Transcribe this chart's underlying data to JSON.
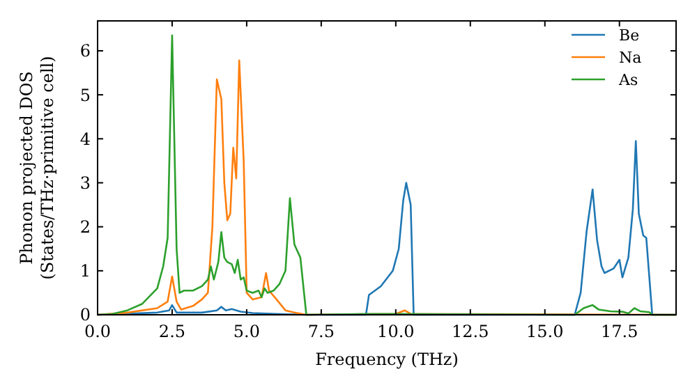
{
  "chart_data": {
    "type": "line",
    "xlabel": "Frequency (THz)",
    "ylabel": "Phonon projected DOS\n(States/THz·primitive cell)",
    "xlim": [
      0,
      19.4
    ],
    "ylim": [
      0,
      6.68
    ],
    "xticks": [
      {
        "value": 0,
        "label": "0.0"
      },
      {
        "value": 2.5,
        "label": "2.5"
      },
      {
        "value": 5,
        "label": "5.0"
      },
      {
        "value": 7.5,
        "label": "7.5"
      },
      {
        "value": 10,
        "label": "10.0"
      },
      {
        "value": 12.5,
        "label": "12.5"
      },
      {
        "value": 15,
        "label": "15.0"
      },
      {
        "value": 17.5,
        "label": "17.5"
      }
    ],
    "yticks": [
      0,
      1,
      2,
      3,
      4,
      5,
      6
    ],
    "legend": "top right",
    "grid": false,
    "marker": "none",
    "line_style": "solid",
    "series": [
      {
        "name": "Be",
        "color": "#1f77b4",
        "x": [
          0,
          2.0,
          2.4,
          2.5,
          2.65,
          3.5,
          4.0,
          4.15,
          4.3,
          4.5,
          4.8,
          5.2,
          6.0,
          7.0,
          9.0,
          9.1,
          9.5,
          9.9,
          10.1,
          10.25,
          10.35,
          10.5,
          10.6,
          16.0,
          16.2,
          16.4,
          16.6,
          16.75,
          16.9,
          17.0,
          17.3,
          17.5,
          17.6,
          17.8,
          17.95,
          18.05,
          18.15,
          18.3,
          18.4,
          18.6,
          19.4
        ],
        "values": [
          0,
          0.05,
          0.1,
          0.22,
          0.05,
          0.05,
          0.1,
          0.18,
          0.1,
          0.13,
          0.07,
          0.04,
          0.02,
          0,
          0,
          0.45,
          0.65,
          1.0,
          1.5,
          2.6,
          3.0,
          2.5,
          0,
          0,
          0.5,
          1.9,
          2.85,
          1.7,
          1.1,
          0.95,
          1.05,
          1.25,
          0.85,
          1.3,
          2.4,
          3.95,
          2.3,
          1.8,
          1.75,
          0,
          0
        ]
      },
      {
        "name": "Na",
        "color": "#ff7f0e",
        "x": [
          0,
          1.0,
          2.0,
          2.35,
          2.5,
          2.65,
          2.8,
          3.2,
          3.5,
          3.7,
          3.85,
          4.0,
          4.15,
          4.25,
          4.35,
          4.45,
          4.55,
          4.65,
          4.75,
          4.9,
          5.0,
          5.2,
          5.5,
          5.65,
          5.75,
          6.0,
          6.3,
          6.6,
          7.0,
          10.0,
          10.3,
          10.5,
          19.4
        ],
        "values": [
          0,
          0.05,
          0.15,
          0.3,
          0.87,
          0.3,
          0.12,
          0.2,
          0.35,
          0.5,
          2.0,
          5.35,
          4.9,
          3.0,
          2.15,
          2.3,
          3.8,
          3.1,
          5.78,
          3.5,
          0.5,
          0.35,
          0.4,
          0.95,
          0.55,
          0.35,
          0.1,
          0.05,
          0,
          0.02,
          0.1,
          0.02,
          0
        ]
      },
      {
        "name": "As",
        "color": "#2ca02c",
        "x": [
          0,
          0.5,
          1.0,
          1.5,
          2.0,
          2.2,
          2.35,
          2.5,
          2.65,
          2.75,
          2.9,
          3.0,
          3.2,
          3.5,
          3.7,
          3.8,
          3.9,
          4.05,
          4.15,
          4.25,
          4.35,
          4.5,
          4.6,
          4.7,
          4.8,
          4.9,
          5.0,
          5.2,
          5.4,
          5.5,
          5.6,
          5.7,
          5.9,
          6.1,
          6.3,
          6.45,
          6.6,
          6.8,
          7.0,
          9.0,
          10.0,
          16.0,
          16.3,
          16.6,
          16.8,
          17.2,
          17.6,
          17.8,
          18.0,
          18.2,
          18.5,
          18.6,
          19.4
        ],
        "values": [
          0,
          0.02,
          0.1,
          0.25,
          0.6,
          1.1,
          1.75,
          6.35,
          1.5,
          0.5,
          0.55,
          0.55,
          0.55,
          0.65,
          0.8,
          1.1,
          0.8,
          1.2,
          1.88,
          1.3,
          1.2,
          1.15,
          0.95,
          1.25,
          0.8,
          0.85,
          0.55,
          0.5,
          0.55,
          0.4,
          0.6,
          0.5,
          0.55,
          0.7,
          1.0,
          2.65,
          1.6,
          1.3,
          0,
          0.02,
          0.02,
          0,
          0.15,
          0.22,
          0.12,
          0.08,
          0.07,
          0.03,
          0.15,
          0.08,
          0.06,
          0,
          0
        ]
      }
    ]
  }
}
